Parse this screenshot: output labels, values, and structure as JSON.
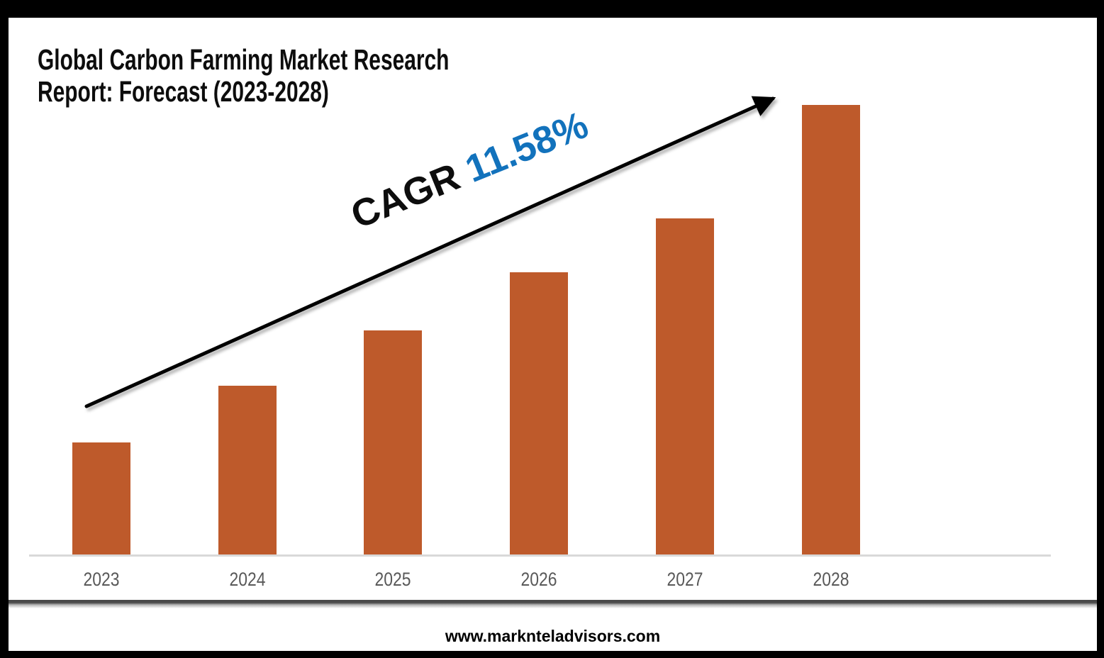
{
  "title": "Global Carbon Farming Market Research\nReport: Forecast (2023-2028)",
  "annotation": {
    "prefix": "CAGR ",
    "value": "11.58%"
  },
  "footer": {
    "website": "www.marknteladvisors.com"
  },
  "colors": {
    "bar": "#be5a2b",
    "accent_blue": "#1272bc",
    "annotation_black": "#0d0d0d",
    "axis_gray": "#d9d9d9",
    "label_gray": "#595959"
  },
  "chart_data": {
    "type": "bar",
    "title": "Global Carbon Farming Market Research Report: Forecast (2023-2028)",
    "categories": [
      "2023",
      "2024",
      "2025",
      "2026",
      "2027",
      "2028"
    ],
    "values": [
      24.9,
      37.6,
      49.9,
      62.7,
      74.8,
      100
    ],
    "values_unit": "relative market size index (no y-axis values shown; bar heights relative to 2028 = 100)",
    "xlabel": "",
    "ylabel": "",
    "ylim": [
      0,
      100
    ],
    "grid": false,
    "legend": false,
    "annotations": [
      {
        "text": "CAGR 11.58%",
        "note": "rotated label along upward trend arrow from 2023 bar to 2028 bar"
      }
    ],
    "trend_arrow": true
  }
}
